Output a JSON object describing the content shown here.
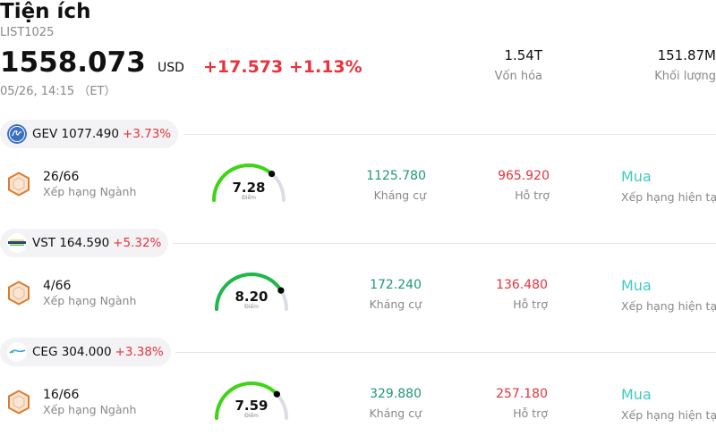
{
  "header": {
    "title": "Tiện ích",
    "code": "LIST1025",
    "price": "1558.073",
    "currency": "USD",
    "change": "+17.573 +1.13%",
    "time": "05/26, 14:15 （ET）",
    "market_cap": {
      "value": "1.54T",
      "label": "Vốn hóa"
    },
    "volume": {
      "value": "151.87M",
      "label": "Khối lượng"
    }
  },
  "stocks": [
    {
      "ticker_price": "GEV 1077.490",
      "change": "+3.73%",
      "rank": "26/66",
      "rank_label": "Xếp hạng Ngành",
      "score": "7.28",
      "score_label": "Điểm",
      "score_fraction": 0.728,
      "resistance": "1125.780",
      "resistance_label": "Kháng cự",
      "support": "965.920",
      "support_label": "Hỗ trợ",
      "rating": "Mua",
      "rating_label": "Xếp hạng hiện tại"
    },
    {
      "ticker_price": "VST 164.590",
      "change": "+5.32%",
      "rank": "4/66",
      "rank_label": "Xếp hạng Ngành",
      "score": "8.20",
      "score_label": "Điểm",
      "score_fraction": 0.82,
      "resistance": "172.240",
      "resistance_label": "Kháng cự",
      "support": "136.480",
      "support_label": "Hỗ trợ",
      "rating": "Mua",
      "rating_label": "Xếp hạng hiện tại"
    },
    {
      "ticker_price": "CEG 304.000",
      "change": "+3.38%",
      "rank": "16/66",
      "rank_label": "Xếp hạng Ngành",
      "score": "7.59",
      "score_label": "Điểm",
      "score_fraction": 0.759,
      "resistance": "329.880",
      "resistance_label": "Kháng cự",
      "support": "257.180",
      "support_label": "Hỗ trợ",
      "rating": "Mua",
      "rating_label": "Xếp hạng hiện tại"
    }
  ],
  "colors": {
    "up": "#e8323c",
    "resistance": "#1a9a77",
    "rating": "#3fc9c0",
    "gauge_track": "#dcdce6",
    "rank_icon": "#e07a2e"
  }
}
